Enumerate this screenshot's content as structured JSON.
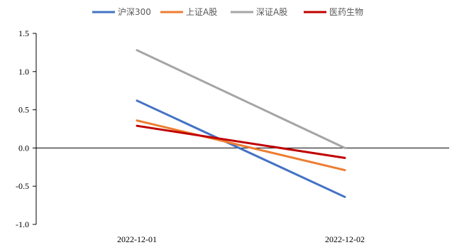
{
  "chart_data": {
    "type": "line",
    "title": "",
    "xlabel": "",
    "ylabel": "",
    "categories": [
      "2022-12-01",
      "2022-12-02"
    ],
    "ylim": [
      -1.0,
      1.5
    ],
    "yticks": [
      1.5,
      1.0,
      0.5,
      0.0,
      -0.5,
      -1.0
    ],
    "ytick_labels": [
      "1.5",
      "1.0",
      "0.5",
      "0.0",
      "-0.5",
      "-1.0"
    ],
    "grid": false,
    "legend_position": "top",
    "series": [
      {
        "name": "沪深300",
        "color": "#4472C4",
        "values": [
          0.62,
          -0.64
        ]
      },
      {
        "name": "上证A股",
        "color": "#ED7D31",
        "values": [
          0.36,
          -0.29
        ]
      },
      {
        "name": "深证A股",
        "color": "#A5A5A5",
        "values": [
          1.28,
          0.0
        ]
      },
      {
        "name": "医药生物",
        "color": "#C00000",
        "values": [
          0.29,
          -0.13
        ]
      }
    ]
  }
}
